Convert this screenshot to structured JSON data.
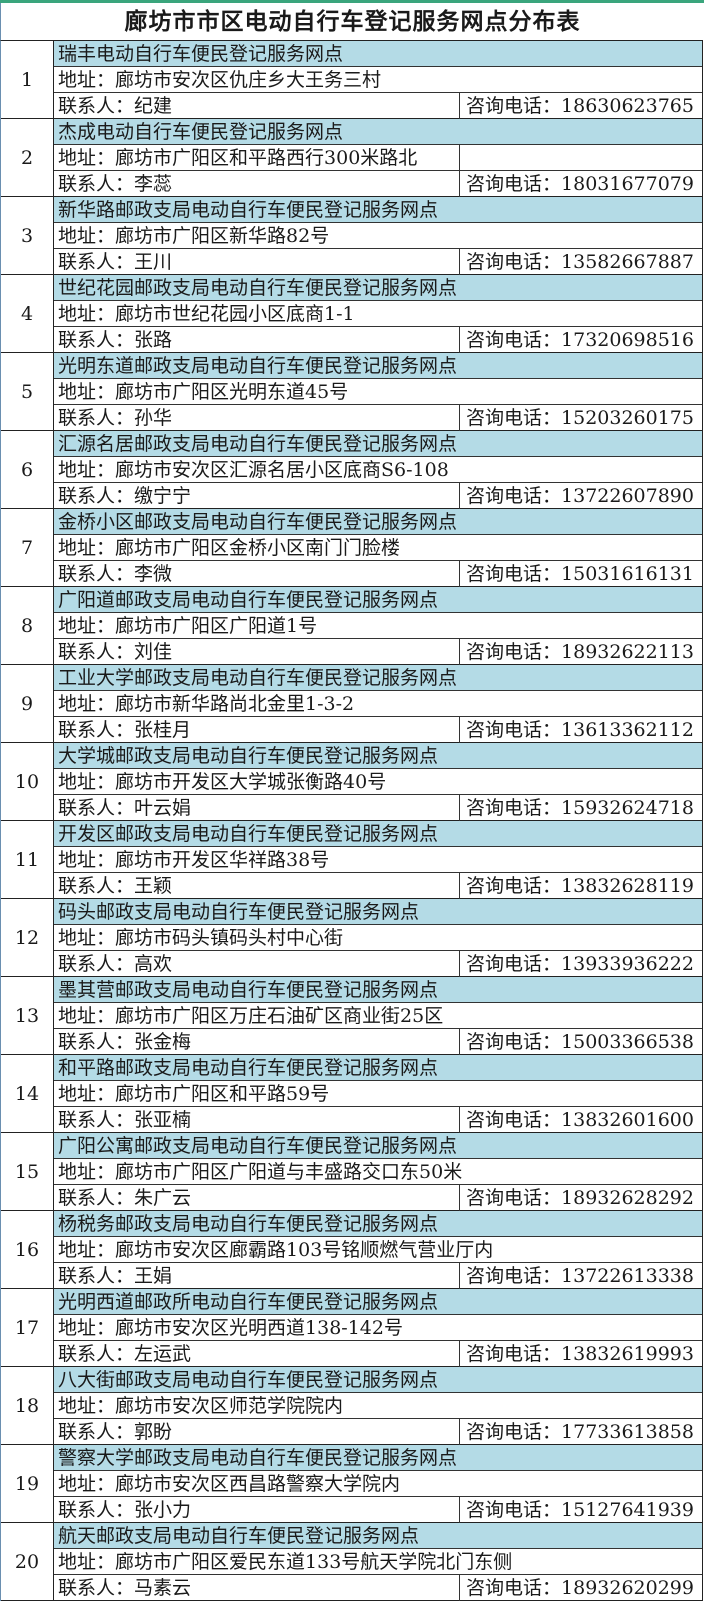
{
  "title": "廊坊市市区电动自行车登记服务网点分布表",
  "labels": {
    "address": "地址：",
    "contact": "联系人：",
    "phone": "咨询电话："
  },
  "colors": {
    "header_row": "#b4dbe6",
    "top_line": "#3aa57c"
  },
  "entries": [
    {
      "no": "1",
      "name": "瑞丰电动自行车便民登记服务网点",
      "address": "廊坊市安次区仇庄乡大王务三村",
      "contact": "纪建",
      "phone": "18630623765"
    },
    {
      "no": "2",
      "name": "杰成电动自行车便民登记服务网点",
      "address": "廊坊市广阳区和平路西行300米路北",
      "contact": "李蕊",
      "phone": "18031677079"
    },
    {
      "no": "3",
      "name": "新华路邮政支局电动自行车便民登记服务网点",
      "address": "廊坊市广阳区新华路82号",
      "contact": "王川",
      "phone": "13582667887"
    },
    {
      "no": "4",
      "name": "世纪花园邮政支局电动自行车便民登记服务网点",
      "address": "廊坊市世纪花园小区底商1-1",
      "contact": "张路",
      "phone": "17320698516"
    },
    {
      "no": "5",
      "name": "光明东道邮政支局电动自行车便民登记服务网点",
      "address": "廊坊市广阳区光明东道45号",
      "contact": "孙华",
      "phone": "15203260175"
    },
    {
      "no": "6",
      "name": "汇源名居邮政支局电动自行车便民登记服务网点",
      "address": "廊坊市安次区汇源名居小区底商S6-108",
      "contact": "缴宁宁",
      "phone": "13722607890"
    },
    {
      "no": "7",
      "name": "金桥小区邮政支局电动自行车便民登记服务网点",
      "address": "廊坊市广阳区金桥小区南门门脸楼",
      "contact": "李微",
      "phone": "15031616131"
    },
    {
      "no": "8",
      "name": "广阳道邮政支局电动自行车便民登记服务网点",
      "address": "廊坊市广阳区广阳道1号",
      "contact": "刘佳",
      "phone": "18932622113"
    },
    {
      "no": "9",
      "name": "工业大学邮政支局电动自行车便民登记服务网点",
      "address": "廊坊市新华路尚北金里1-3-2",
      "contact": "张桂月",
      "phone": "13613362112"
    },
    {
      "no": "10",
      "name": "大学城邮政支局电动自行车便民登记服务网点",
      "address": "廊坊市开发区大学城张衡路40号",
      "contact": "叶云娟",
      "phone": "15932624718"
    },
    {
      "no": "11",
      "name": "开发区邮政支局电动自行车便民登记服务网点",
      "address": "廊坊市开发区华祥路38号",
      "contact": "王颖",
      "phone": "13832628119"
    },
    {
      "no": "12",
      "name": "码头邮政支局电动自行车便民登记服务网点",
      "address": "廊坊市码头镇码头村中心街",
      "contact": "高欢",
      "phone": "13933936222"
    },
    {
      "no": "13",
      "name": "墨其营邮政支局电动自行车便民登记服务网点",
      "address": "廊坊市广阳区万庄石油矿区商业街25区",
      "contact": "张金梅",
      "phone": "15003366538"
    },
    {
      "no": "14",
      "name": "和平路邮政支局电动自行车便民登记服务网点",
      "address": "廊坊市广阳区和平路59号",
      "contact": "张亚楠",
      "phone": "13832601600"
    },
    {
      "no": "15",
      "name": "广阳公寓邮政支局电动自行车便民登记服务网点",
      "address": "廊坊市广阳区广阳道与丰盛路交口东50米",
      "contact": "朱广云",
      "phone": "18932628292"
    },
    {
      "no": "16",
      "name": "杨税务邮政支局电动自行车便民登记服务网点",
      "address": "廊坊市安次区廊霸路103号铭顺燃气营业厅内",
      "contact": "王娟",
      "phone": "13722613338"
    },
    {
      "no": "17",
      "name": "光明西道邮政所电动自行车便民登记服务网点",
      "address": "廊坊市安次区光明西道138-142号",
      "contact": "左运武",
      "phone": "13832619993"
    },
    {
      "no": "18",
      "name": "八大街邮政支局电动自行车便民登记服务网点",
      "address": "廊坊市安次区师范学院院内",
      "contact": "郭盼",
      "phone": "17733613858"
    },
    {
      "no": "19",
      "name": "警察大学邮政支局电动自行车便民登记服务网点",
      "address": "廊坊市安次区西昌路警察大学院内",
      "contact": "张小力",
      "phone": "15127641939"
    },
    {
      "no": "20",
      "name": "航天邮政支局电动自行车便民登记服务网点",
      "address": "廊坊市广阳区爱民东道133号航天学院北门东侧",
      "contact": "马素云",
      "phone": "18932620299"
    }
  ]
}
